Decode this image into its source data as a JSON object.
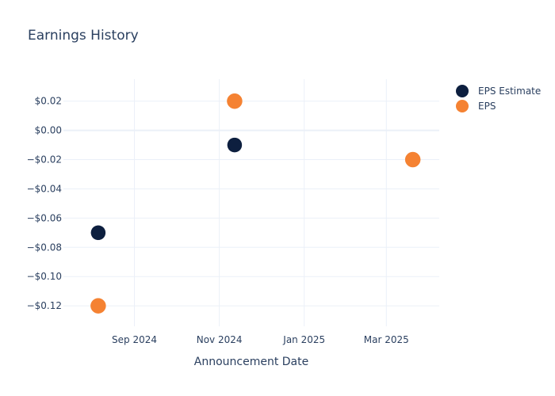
{
  "chart_data": {
    "type": "scatter",
    "title": "Earnings History",
    "xlabel": "Announcement Date",
    "ylabel": "",
    "x_ticks": [
      {
        "date": "2024-09-01",
        "label": "Sep 2024"
      },
      {
        "date": "2024-11-01",
        "label": "Nov 2024"
      },
      {
        "date": "2025-01-01",
        "label": "Jan 2025"
      },
      {
        "date": "2025-03-01",
        "label": "Mar 2025"
      }
    ],
    "xlim": [
      "2024-07-12",
      "2025-04-08"
    ],
    "y_ticks": [
      {
        "value": 0.02,
        "label": "$0.02"
      },
      {
        "value": 0.0,
        "label": "$0.00"
      },
      {
        "value": -0.02,
        "label": "−$0.02"
      },
      {
        "value": -0.04,
        "label": "−$0.04"
      },
      {
        "value": -0.06,
        "label": "−$0.06"
      },
      {
        "value": -0.08,
        "label": "−$0.08"
      },
      {
        "value": -0.1,
        "label": "−$0.10"
      },
      {
        "value": -0.12,
        "label": "−$0.12"
      }
    ],
    "ylim": [
      -0.134,
      0.035
    ],
    "grid": true,
    "legend_position": "top-right",
    "series": [
      {
        "name": "EPS Estimate",
        "color": "#0d1f3f",
        "points": [
          {
            "x": "2024-08-06",
            "y": -0.07
          },
          {
            "x": "2024-11-12",
            "y": -0.01
          },
          {
            "x": "2025-03-20",
            "y": -0.02
          }
        ]
      },
      {
        "name": "EPS",
        "color": "#f58232",
        "points": [
          {
            "x": "2024-08-06",
            "y": -0.12
          },
          {
            "x": "2024-11-12",
            "y": 0.02
          },
          {
            "x": "2025-03-20",
            "y": -0.02
          }
        ]
      }
    ]
  }
}
